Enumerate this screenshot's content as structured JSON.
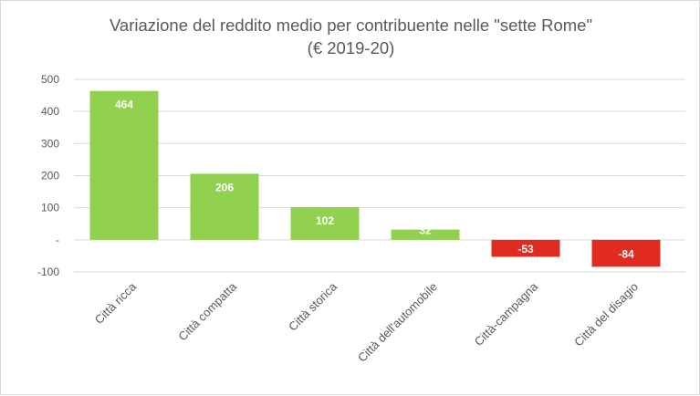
{
  "chart_data": {
    "type": "bar",
    "title": "Variazione del reddito medio per contribuente nelle \"sette Rome\"",
    "subtitle": "(€ 2019-20)",
    "categories": [
      "Città ricca",
      "Città compatta",
      "Città storica",
      "Città dell'automobile",
      "Città-campagna",
      "Città del disagio"
    ],
    "values": [
      464,
      206,
      102,
      32,
      -53,
      -84
    ],
    "data_labels": [
      "464",
      "206",
      "102",
      "32",
      "-53",
      "-84"
    ],
    "ylim": [
      -100,
      500
    ],
    "yticks": [
      500,
      400,
      300,
      200,
      100,
      0,
      -100
    ],
    "ytick_labels": [
      "500",
      "400",
      "300",
      "200",
      "100",
      "-",
      "-100"
    ],
    "grid": true,
    "legend": "none",
    "colors": {
      "positive": "#92d050",
      "negative": "#e02b20",
      "grid": "#d9d9d9",
      "text": "#595959"
    }
  }
}
